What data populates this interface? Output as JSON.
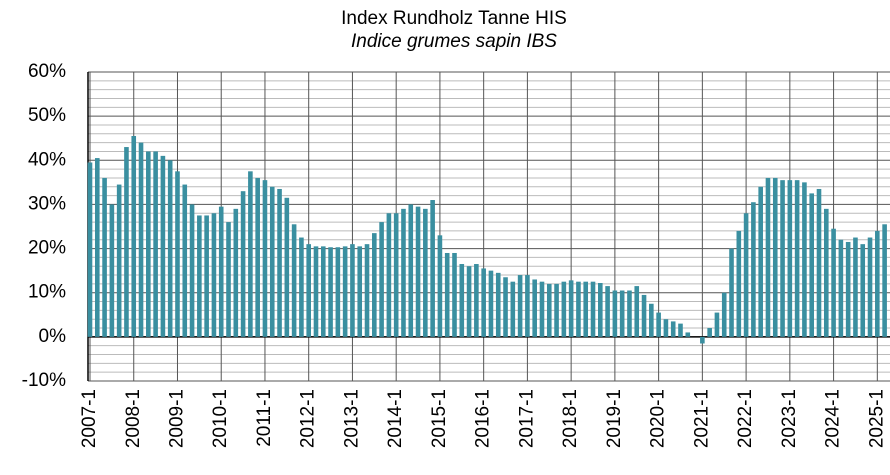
{
  "chart_data": {
    "type": "bar",
    "title": "Index Rundholz Tanne HIS",
    "subtitle": "Indice grumes sapin IBS",
    "categories": [
      "2007-1",
      null,
      null,
      null,
      null,
      null,
      "2008-1",
      null,
      null,
      null,
      null,
      null,
      "2009-1",
      null,
      null,
      null,
      null,
      null,
      "2010-1",
      null,
      null,
      null,
      null,
      null,
      "2011-1",
      null,
      null,
      null,
      null,
      null,
      "2012-1",
      null,
      null,
      null,
      null,
      null,
      "2013-1",
      null,
      null,
      null,
      null,
      null,
      "2014-1",
      null,
      null,
      null,
      null,
      null,
      "2015-1",
      null,
      null,
      null,
      null,
      null,
      "2016-1",
      null,
      null,
      null,
      null,
      null,
      "2017-1",
      null,
      null,
      null,
      null,
      null,
      "2018-1",
      null,
      null,
      null,
      null,
      null,
      "2019-1",
      null,
      null,
      null,
      null,
      null,
      "2020-1",
      null,
      null,
      null,
      null,
      null,
      "2021-1",
      null,
      null,
      null,
      null,
      null,
      "2022-1",
      null,
      null,
      null,
      null,
      null,
      "2023-1",
      null,
      null,
      null,
      null,
      null,
      "2024-1",
      null,
      null,
      null,
      null,
      null,
      "2025-1",
      null
    ],
    "values": [
      39.5,
      40.5,
      36,
      30,
      34.5,
      43,
      45.5,
      44,
      42,
      42,
      41,
      40,
      37.5,
      34.5,
      30,
      27.5,
      27.5,
      28,
      29.5,
      26,
      29,
      33,
      37.5,
      36,
      35.5,
      34,
      33.5,
      31.5,
      25.5,
      22.5,
      21,
      20.5,
      20.5,
      20.3,
      20.3,
      20.5,
      21,
      20.5,
      21,
      23.5,
      26,
      28,
      28,
      29,
      30,
      29.5,
      29,
      31,
      23,
      19,
      19,
      16.5,
      16,
      16.5,
      15.5,
      15,
      14.5,
      13.5,
      12.5,
      14,
      14,
      13,
      12.5,
      12,
      12,
      12.5,
      12.8,
      12.5,
      12.5,
      12.5,
      12.2,
      11.5,
      10.5,
      10.5,
      10.5,
      11.5,
      9.5,
      7.5,
      5.5,
      4,
      3.5,
      3,
      1,
      0,
      -1.5,
      2,
      5.5,
      10,
      20,
      24,
      28,
      30.5,
      34,
      36,
      36,
      35.5,
      35.5,
      35.5,
      35,
      32.5,
      33.5,
      29,
      24.5,
      22,
      21.5,
      22.5,
      21,
      22.5,
      24,
      25.5
    ],
    "color": "#3a8fa0",
    "ylim": [
      -10,
      60
    ],
    "yticks": [
      {
        "value": -10,
        "label": "-10%"
      },
      {
        "value": 0,
        "label": "0%"
      },
      {
        "value": 10,
        "label": "10%"
      },
      {
        "value": 20,
        "label": "20%"
      },
      {
        "value": 30,
        "label": "30%"
      },
      {
        "value": 40,
        "label": "40%"
      },
      {
        "value": 50,
        "label": "50%"
      },
      {
        "value": 60,
        "label": "60%"
      }
    ],
    "yminorticks": [
      -8,
      -6,
      -4,
      -2,
      2,
      4,
      6,
      8,
      12,
      14,
      16,
      18,
      22,
      24,
      26,
      28,
      32,
      34,
      36,
      38,
      42,
      44,
      46,
      48,
      52,
      54,
      56,
      58
    ],
    "grid": true
  }
}
